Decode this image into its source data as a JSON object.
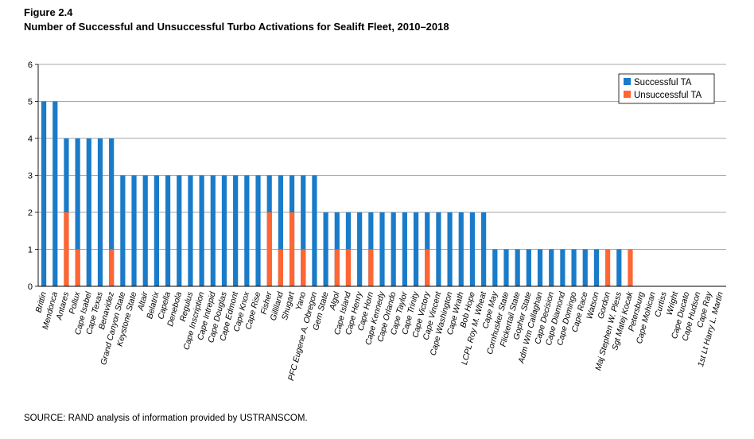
{
  "figure": {
    "label": "Figure 2.4",
    "title": "Number of Successful and Unsuccessful Turbo Activations for Sealift Fleet, 2010–2018",
    "source": "SOURCE: RAND analysis of information provided by USTRANSCOM."
  },
  "chart_data": {
    "type": "bar",
    "title": "Number of Successful and Unsuccessful Turbo Activations for Sealift Fleet, 2010–2018",
    "xlabel": "",
    "ylabel": "",
    "ylim": [
      0,
      6
    ],
    "yticks": [
      "0",
      "1",
      "2",
      "3",
      "4",
      "5",
      "6"
    ],
    "grid": true,
    "legend_position": "top-right",
    "categories": [
      "Brittin",
      "Mendonca",
      "Antares",
      "Pollux",
      "Cape Isabel",
      "Cape Texas",
      "Benavidez",
      "Grand Canyon State",
      "Keystone State",
      "Altair",
      "Belatrix",
      "Capella",
      "Denebola",
      "Regulus",
      "Cape Inscription",
      "Cape Intrepid",
      "Cape Douglas",
      "Cape Edmont",
      "Cape Knox",
      "Cape Rise",
      "Fisher",
      "Gilliland",
      "Shugart",
      "Yano",
      "PFC Eugene A. Obregon",
      "Gem State",
      "Algol",
      "Cape Island",
      "Cape Henry",
      "Cape Horn",
      "Cape Kennedy",
      "Cape Orlando",
      "Cape Taylor",
      "Cape Trinity",
      "Cape Victory",
      "Cape Vincent",
      "Cape Washington",
      "Cape Wrath",
      "Bob Hope",
      "LCPL Roy M. Wheat",
      "Cape May",
      "Cornhusker State",
      "Flickertail State",
      "Gopher State",
      "Adm Wm Callaghan",
      "Cape Decision",
      "Cape Diamond",
      "Cape Domingo",
      "Cape Race",
      "Watson",
      "Gordon",
      "Maj Stephen W. Pless",
      "Sgt Matej Kocak",
      "Petersburg",
      "Cape Mohican",
      "Curtiss",
      "Wright",
      "Cape Ducato",
      "Cape Hudson",
      "Cape Ray",
      "1st Lt Harry L. Martin"
    ],
    "series": [
      {
        "name": "Successful TA",
        "color": "#1a7bc9",
        "values": [
          5,
          5,
          4,
          4,
          4,
          4,
          4,
          3,
          3,
          3,
          3,
          3,
          3,
          3,
          3,
          3,
          3,
          3,
          3,
          3,
          3,
          3,
          3,
          3,
          3,
          2,
          2,
          2,
          2,
          2,
          2,
          2,
          2,
          2,
          2,
          2,
          2,
          2,
          2,
          2,
          1,
          1,
          1,
          1,
          1,
          1,
          1,
          1,
          1,
          1,
          0,
          1,
          0,
          0,
          0,
          0,
          0,
          0,
          0,
          0,
          0
        ]
      },
      {
        "name": "Unsuccessful TA",
        "color": "#ff6633",
        "values": [
          0,
          0,
          2,
          1,
          0,
          0,
          1,
          0,
          0,
          0,
          0,
          0,
          0,
          0,
          0,
          0,
          0,
          0,
          0,
          0,
          2,
          1,
          2,
          1,
          0,
          0,
          1,
          1,
          0,
          1,
          0,
          0,
          0,
          0,
          1,
          0,
          0,
          0,
          0,
          0,
          0,
          0,
          0,
          0,
          0,
          0,
          0,
          0,
          0,
          0,
          1,
          0,
          1,
          0,
          0,
          0,
          0,
          0,
          0,
          0,
          0
        ]
      }
    ]
  }
}
